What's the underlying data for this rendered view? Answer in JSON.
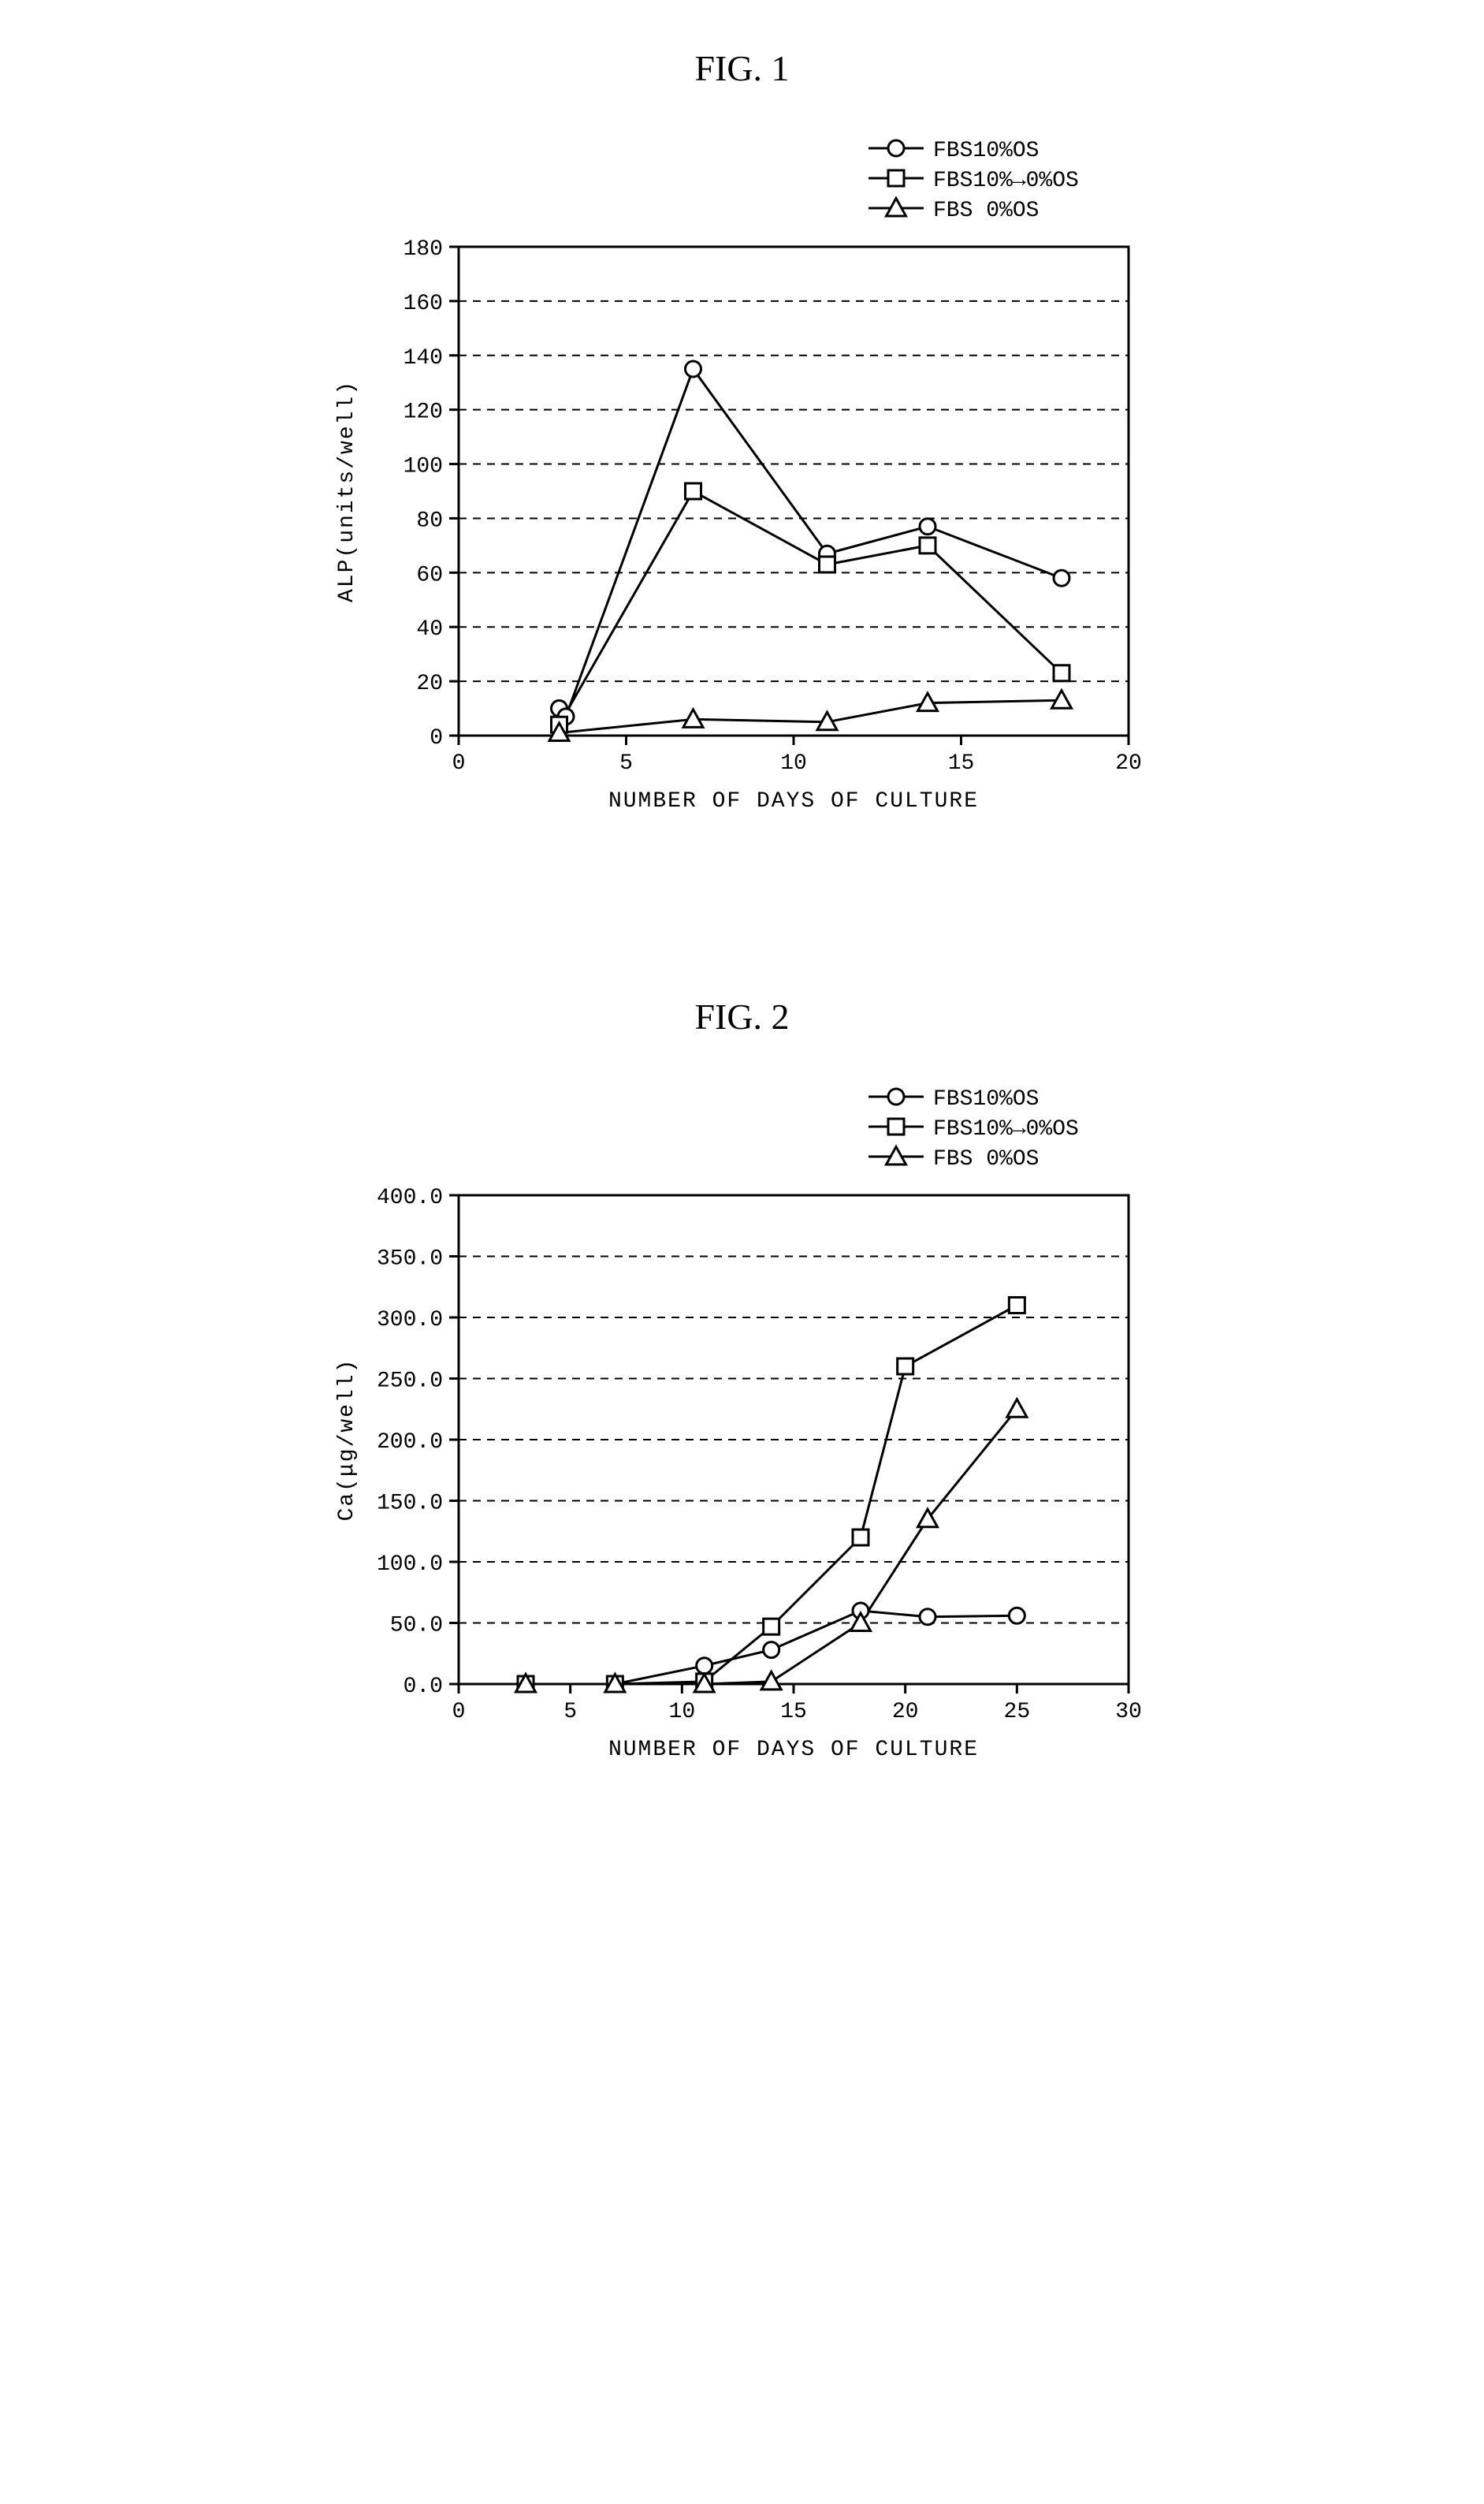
{
  "fig1": {
    "title": "FIG. 1",
    "type": "line",
    "xlabel": "NUMBER OF DAYS OF CULTURE",
    "ylabel": "ALP(units/well)",
    "xlim": [
      0,
      20
    ],
    "ylim": [
      0,
      180
    ],
    "xtick_step": 5,
    "ytick_step": 20,
    "xticks": [
      0,
      5,
      10,
      15,
      20
    ],
    "yticks": [
      0,
      20,
      40,
      60,
      80,
      100,
      120,
      140,
      160,
      180
    ],
    "background_color": "#ffffff",
    "grid_color": "#000000",
    "axis_color": "#000000",
    "label_fontsize": 28,
    "tick_fontsize": 28,
    "legend_fontsize": 28,
    "line_width": 3,
    "marker_size": 10,
    "series": [
      {
        "label": "FBS10%OS",
        "marker": "circle",
        "color": "#000000",
        "x": [
          3,
          3.2,
          7,
          11,
          14,
          18
        ],
        "y": [
          10,
          7,
          135,
          67,
          77,
          58
        ]
      },
      {
        "label": "FBS10%→0%OS",
        "marker": "square",
        "color": "#000000",
        "x": [
          3,
          7,
          11,
          14,
          18
        ],
        "y": [
          4,
          90,
          63,
          70,
          23
        ]
      },
      {
        "label": "FBS 0%OS",
        "marker": "triangle",
        "color": "#000000",
        "x": [
          3,
          7,
          11,
          14,
          18
        ],
        "y": [
          1,
          6,
          5,
          12,
          13
        ]
      }
    ]
  },
  "fig2": {
    "title": "FIG. 2",
    "type": "line",
    "xlabel": "NUMBER OF DAYS OF CULTURE",
    "ylabel": "Ca(μg/well)",
    "xlim": [
      0,
      30
    ],
    "ylim": [
      0,
      400
    ],
    "xtick_step": 5,
    "ytick_step": 50,
    "xticks": [
      0,
      5,
      10,
      15,
      20,
      25,
      30
    ],
    "yticks": [
      0,
      50,
      100,
      150,
      200,
      250,
      300,
      350,
      400
    ],
    "ytick_labels": [
      "0.0",
      "50.0",
      "100.0",
      "150.0",
      "200.0",
      "250.0",
      "300.0",
      "350.0",
      "400.0"
    ],
    "background_color": "#ffffff",
    "grid_color": "#000000",
    "axis_color": "#000000",
    "label_fontsize": 28,
    "tick_fontsize": 28,
    "legend_fontsize": 28,
    "line_width": 3,
    "marker_size": 10,
    "series": [
      {
        "label": "FBS10%OS",
        "marker": "circle",
        "color": "#000000",
        "x": [
          3,
          7,
          11,
          14,
          18,
          21,
          25
        ],
        "y": [
          0,
          0,
          15,
          28,
          60,
          55,
          56
        ]
      },
      {
        "label": "FBS10%→0%OS",
        "marker": "square",
        "color": "#000000",
        "x": [
          3,
          7,
          11,
          14,
          18,
          20,
          25
        ],
        "y": [
          0,
          0,
          2,
          47,
          120,
          260,
          310
        ]
      },
      {
        "label": "FBS 0%OS",
        "marker": "triangle",
        "color": "#000000",
        "x": [
          3,
          7,
          11,
          14,
          18,
          21,
          25
        ],
        "y": [
          0,
          0,
          0,
          2,
          50,
          135,
          225
        ]
      }
    ]
  }
}
